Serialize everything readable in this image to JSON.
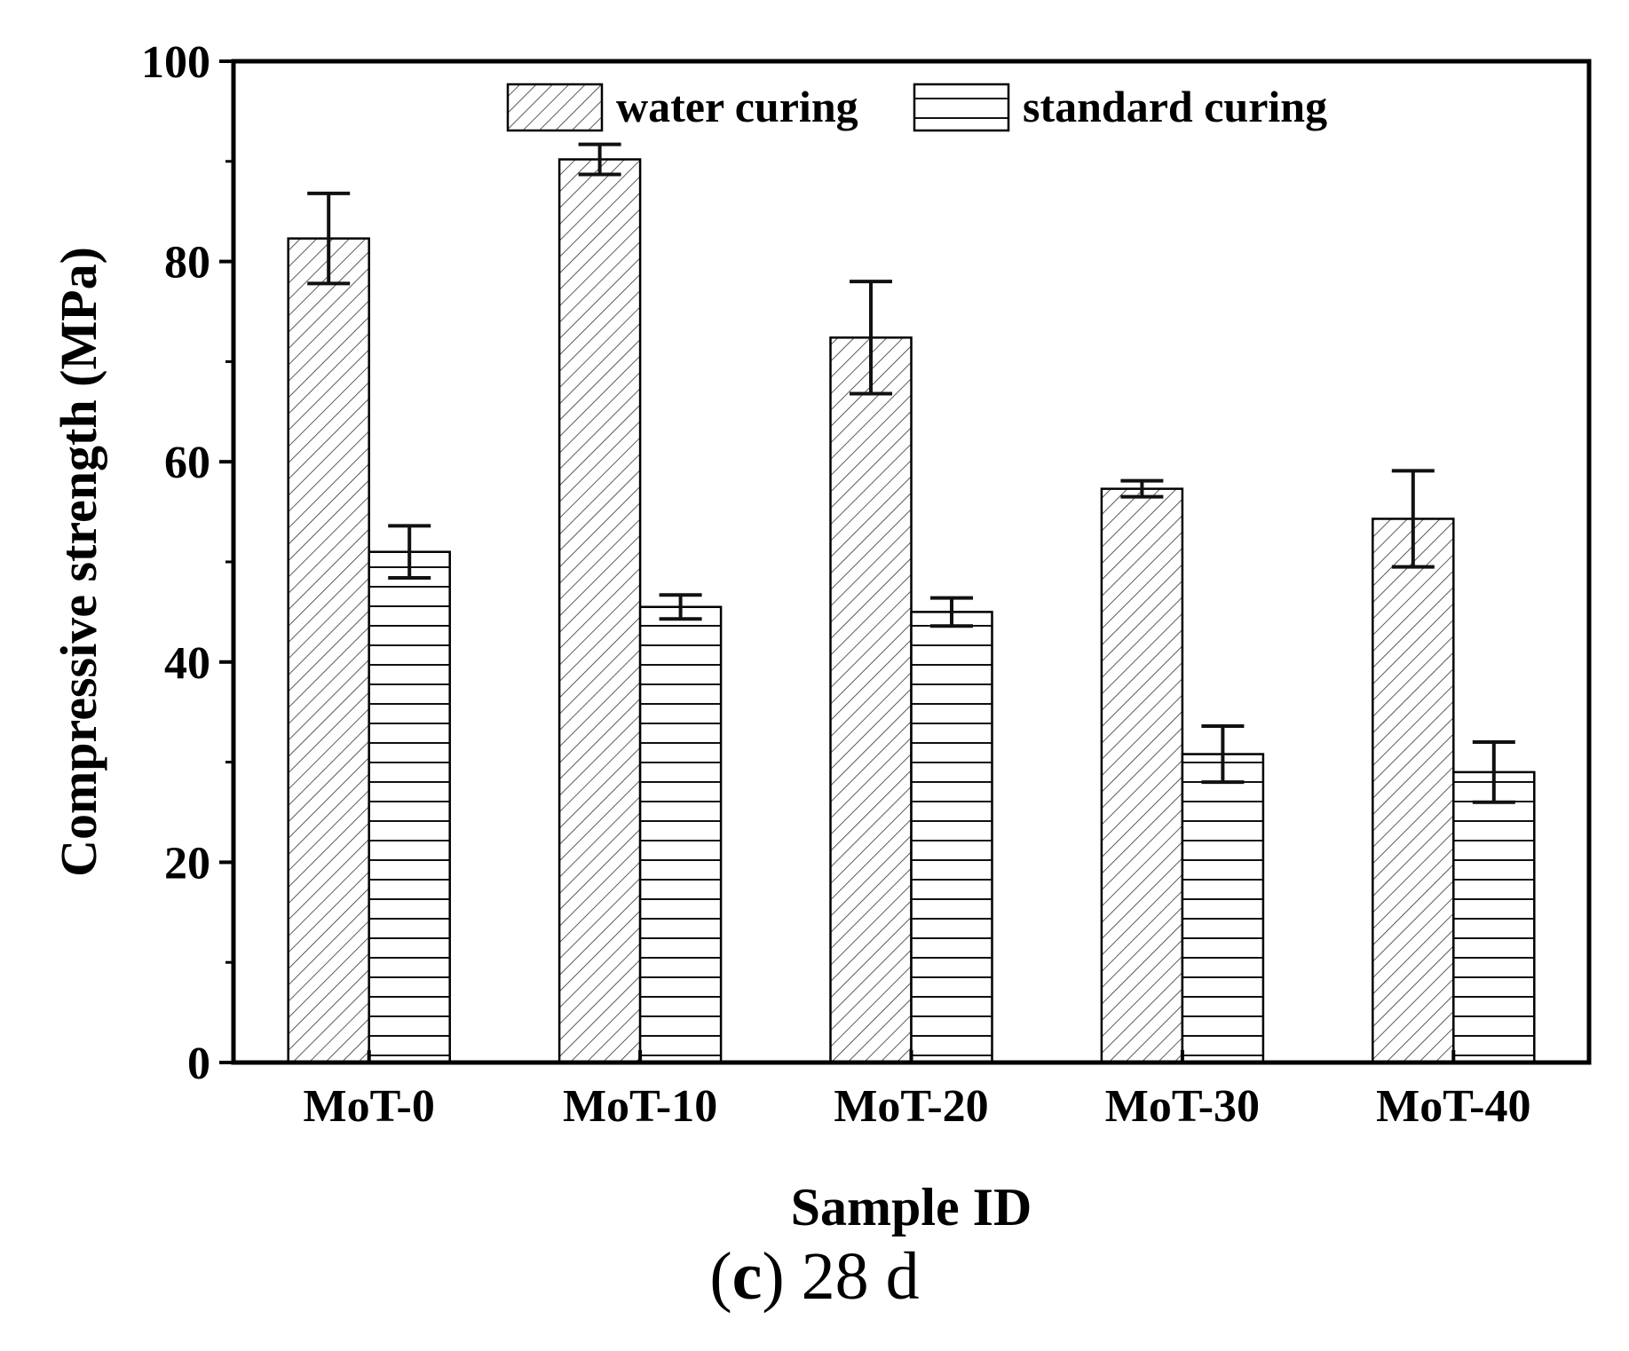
{
  "chart_data": {
    "type": "bar",
    "ylabel": "Compressive strength (MPa)",
    "xlabel": "Sample ID",
    "ylim": [
      0,
      100
    ],
    "yticks": [
      0,
      20,
      40,
      60,
      80,
      100
    ],
    "categories": [
      "MoT-0",
      "MoT-10",
      "MoT-20",
      "MoT-30",
      "MoT-40"
    ],
    "series": [
      {
        "name": "water curing",
        "pattern": "diagonal",
        "values": [
          82.3,
          90.2,
          72.4,
          57.3,
          54.3
        ],
        "error": [
          4.5,
          1.5,
          5.6,
          0.8,
          4.8
        ]
      },
      {
        "name": "standard curing",
        "pattern": "horizontal",
        "values": [
          51.0,
          45.5,
          45.0,
          30.8,
          29.0
        ],
        "error": [
          2.6,
          1.2,
          1.4,
          2.8,
          3.0
        ]
      }
    ],
    "legend_position": "top-center"
  },
  "caption": {
    "letter": "(c)",
    "label": "(c) 28 d",
    "text": "28 d"
  },
  "colors": {
    "bar_fill": "#ffffff",
    "stroke": "#000000",
    "background": "#ffffff"
  }
}
